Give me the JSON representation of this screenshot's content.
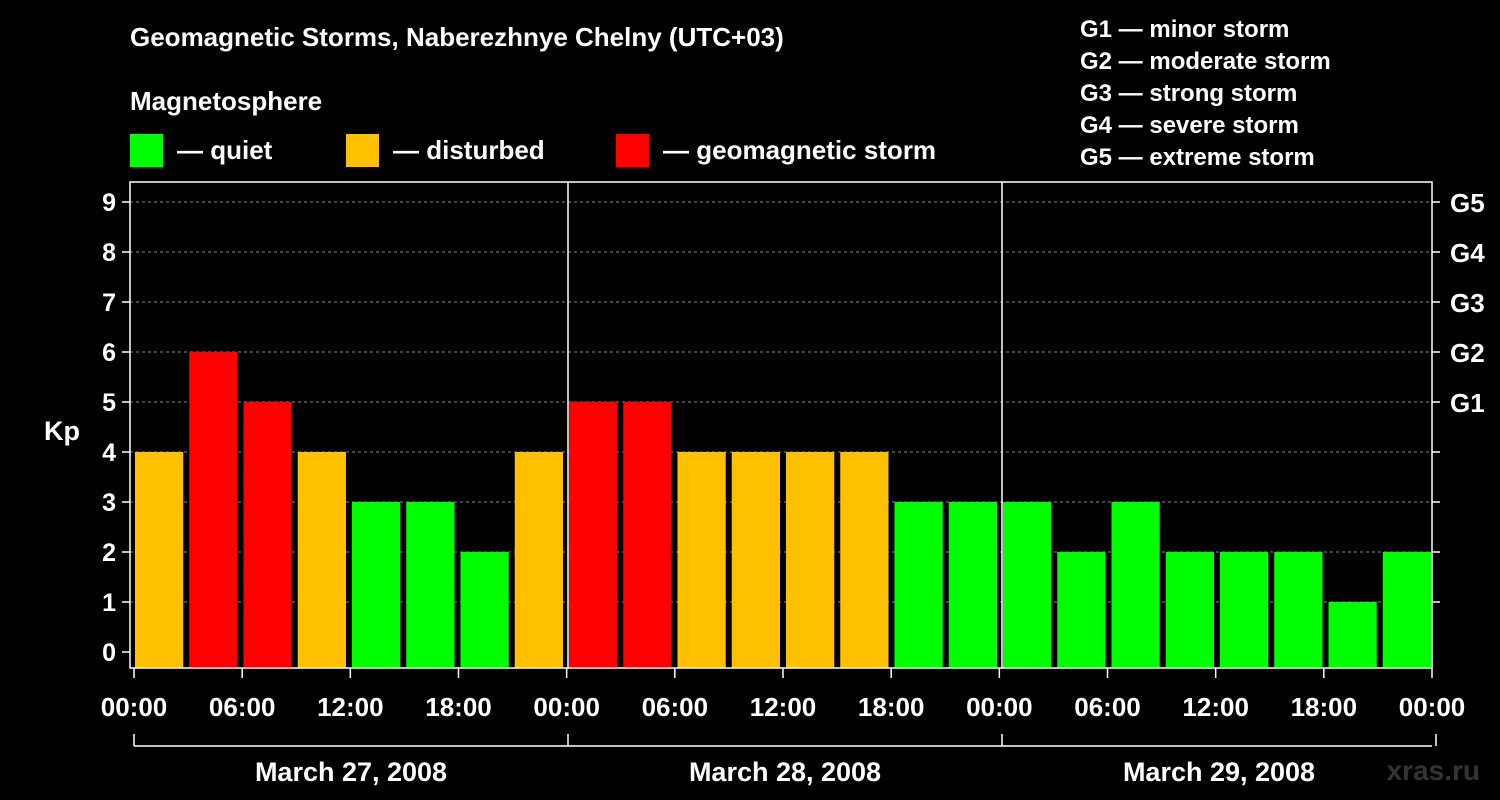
{
  "title": "Geomagnetic Storms, Naberezhnye Chelny (UTC+03)",
  "legend": {
    "heading": "Magnetosphere",
    "items": [
      {
        "label": "— quiet",
        "color": "#00ff00"
      },
      {
        "label": "— disturbed",
        "color": "#ffc000"
      },
      {
        "label": "— geomagnetic storm",
        "color": "#ff0000"
      }
    ]
  },
  "storm_scale": [
    "G1 — minor storm",
    "G2 — moderate storm",
    "G3 — strong storm",
    "G4 — severe storm",
    "G5 — extreme storm"
  ],
  "watermark": "xras.ru",
  "chart_data": {
    "type": "bar",
    "ylabel": "Kp",
    "ylim": [
      0,
      9
    ],
    "yticks": [
      0,
      1,
      2,
      3,
      4,
      5,
      6,
      7,
      8,
      9
    ],
    "right_axis": [
      {
        "value": 5,
        "label": "G1"
      },
      {
        "value": 6,
        "label": "G2"
      },
      {
        "value": 7,
        "label": "G3"
      },
      {
        "value": 8,
        "label": "G4"
      },
      {
        "value": 9,
        "label": "G5"
      }
    ],
    "xtick_labels": [
      "00:00",
      "06:00",
      "12:00",
      "18:00",
      "00:00",
      "06:00",
      "12:00",
      "18:00",
      "00:00",
      "06:00",
      "12:00",
      "18:00",
      "00:00"
    ],
    "days": [
      "March 27, 2008",
      "March 28, 2008",
      "March 29, 2008"
    ],
    "interval_hours": 3,
    "values": [
      4,
      6,
      5,
      4,
      3,
      3,
      2,
      4,
      5,
      5,
      4,
      4,
      4,
      4,
      3,
      3,
      3,
      2,
      3,
      2,
      2,
      2,
      1,
      2
    ],
    "colors": {
      "quiet": "#00ff00",
      "disturbed": "#ffc000",
      "storm": "#ff0000"
    }
  }
}
